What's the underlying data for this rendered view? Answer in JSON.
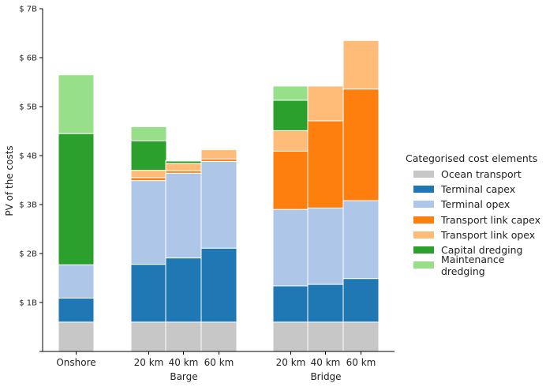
{
  "chart_data": {
    "type": "bar",
    "stacked": true,
    "title": "",
    "xlabel": "",
    "ylabel": "PV of the costs",
    "ylim": [
      0,
      7
    ],
    "y_ticks": [
      1,
      2,
      3,
      4,
      5,
      6,
      7
    ],
    "y_tick_labels": [
      "$ 1B",
      "$ 2B",
      "$ 3B",
      "$ 4B",
      "$ 5B",
      "$ 6B",
      "$ 7B"
    ],
    "y_unit": "billion $",
    "grid": false,
    "legend_position": "right",
    "legend_title": "Categorised cost elements",
    "categories": [
      "Onshore",
      "20 km",
      "40 km",
      "60 km",
      "20 km",
      "40 km",
      "60 km"
    ],
    "groups": [
      {
        "label": "Barge",
        "members": [
          1,
          2,
          3
        ]
      },
      {
        "label": "Bridge",
        "members": [
          4,
          5,
          6
        ]
      }
    ],
    "series": [
      {
        "name": "Ocean transport",
        "color": "#c7c7c7",
        "values": [
          0.6,
          0.6,
          0.6,
          0.6,
          0.6,
          0.6,
          0.6
        ]
      },
      {
        "name": "Terminal capex",
        "color": "#1f77b4",
        "values": [
          0.49,
          1.18,
          1.31,
          1.51,
          0.74,
          0.77,
          0.89
        ]
      },
      {
        "name": "Terminal opex",
        "color": "#aec7e8",
        "values": [
          0.68,
          1.71,
          1.73,
          1.77,
          1.56,
          1.56,
          1.59
        ]
      },
      {
        "name": "Transport link capex",
        "color": "#ff7f0e",
        "values": [
          0,
          0.06,
          0.05,
          0.05,
          1.19,
          1.78,
          2.28
        ]
      },
      {
        "name": "Transport link opex",
        "color": "#ffbb78",
        "values": [
          0,
          0.15,
          0.15,
          0.19,
          0.42,
          0.71,
          0.99
        ]
      },
      {
        "name": "Capital dredging",
        "color": "#2ca02c",
        "values": [
          2.68,
          0.6,
          0.05,
          0.02,
          0.62,
          0,
          0
        ]
      },
      {
        "name": "Maintenance dredging",
        "color": "#98df8a",
        "values": [
          1.2,
          0.29,
          0.01,
          0.01,
          0.29,
          0,
          0
        ]
      }
    ]
  }
}
